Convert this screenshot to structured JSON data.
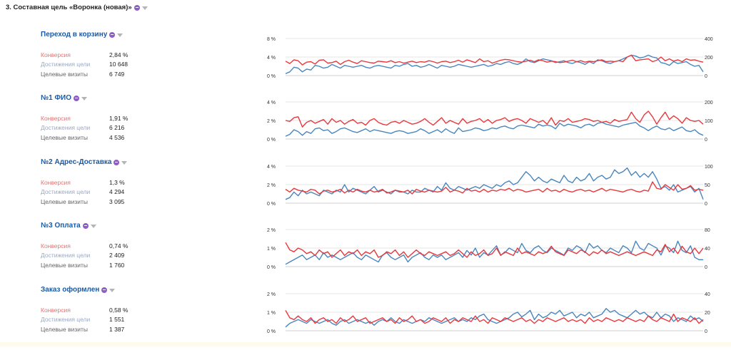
{
  "report_title": "3. Составная цель «Воронка (новая)»",
  "metric_labels": {
    "conversion": "Конверсия",
    "reaches": "Достижения цели",
    "visits": "Целевые визиты"
  },
  "colors": {
    "conversion_line": "#e8383d",
    "visits_line": "#4a86be",
    "goal_title": "#1a5aa5",
    "conversion_label": "#e17575",
    "reaches_label": "#9aa8c6",
    "gridline": "#e6e6e6"
  },
  "icons": {
    "segment": "segment-icon",
    "filter": "filter-icon"
  },
  "goals": [
    {
      "name": "Переход в корзину",
      "conversion": "2,84 %",
      "reaches": "10 648",
      "visits": "6 749",
      "left_ticks": [
        "8 %",
        "4 %",
        "0 %"
      ],
      "right_ticks": [
        "400",
        "200",
        "0"
      ],
      "left_max": 8,
      "right_max": 400,
      "conv_series": [
        3.1,
        2.6,
        3.4,
        3.2,
        2.3,
        2.9,
        3.0,
        2.5,
        3.3,
        3.4,
        2.7,
        2.8,
        3.1,
        2.4,
        3.0,
        3.3,
        2.9,
        2.6,
        3.2,
        3.0,
        2.8,
        2.7,
        3.1,
        3.0,
        2.9,
        3.2,
        2.8,
        3.0,
        2.7,
        2.9,
        3.1,
        2.8,
        3.0,
        2.9,
        3.2,
        3.0,
        2.7,
        3.0,
        3.1,
        2.8,
        3.0,
        3.3,
        2.9,
        3.4,
        3.1,
        2.8,
        3.6,
        3.0,
        3.2,
        2.7,
        3.0,
        3.3,
        3.5,
        3.4,
        3.2,
        3.0,
        2.9,
        3.1,
        3.3,
        3.0,
        3.4,
        3.2,
        2.9,
        3.1,
        3.0,
        2.8,
        2.9,
        3.1,
        3.3,
        3.0,
        3.2,
        2.9,
        3.1,
        3.0,
        3.2,
        3.4,
        3.0,
        3.1,
        3.0,
        3.2,
        3.0,
        4.0,
        4.4,
        3.2,
        3.4,
        3.5,
        3.6,
        3.0,
        3.3,
        4.0,
        3.2,
        3.6,
        3.1,
        3.4,
        3.0,
        3.6,
        3.3,
        3.4,
        3.1,
        2.9
      ],
      "visits_series": [
        20,
        40,
        90,
        80,
        40,
        70,
        60,
        110,
        100,
        80,
        90,
        120,
        100,
        80,
        110,
        100,
        90,
        100,
        110,
        90,
        80,
        100,
        110,
        100,
        90,
        80,
        110,
        100,
        120,
        130,
        100,
        110,
        90,
        100,
        120,
        100,
        80,
        110,
        100,
        90,
        100,
        120,
        110,
        100,
        90,
        100,
        110,
        120,
        100,
        110,
        130,
        120,
        140,
        150,
        130,
        120,
        140,
        180,
        150,
        140,
        160,
        180,
        170,
        160,
        140,
        150,
        160,
        140,
        130,
        150,
        140,
        120,
        150,
        130,
        170,
        160,
        140,
        130,
        150,
        160,
        180,
        200,
        220,
        210,
        190,
        200,
        220,
        200,
        190,
        140,
        130,
        110,
        150,
        130,
        140,
        150,
        120,
        100,
        110,
        40
      ]
    },
    {
      "name": "№1 ФИО",
      "conversion": "1,91 %",
      "reaches": "6 216",
      "visits": "4 536",
      "left_ticks": [
        "4 %",
        "2 %",
        "0 %"
      ],
      "right_ticks": [
        "200",
        "100",
        "0"
      ],
      "left_max": 4,
      "right_max": 200,
      "conv_series": [
        2.0,
        1.9,
        2.3,
        2.4,
        1.3,
        1.8,
        2.0,
        1.7,
        1.9,
        2.1,
        1.6,
        2.2,
        1.8,
        2.0,
        1.6,
        1.9,
        2.1,
        1.7,
        1.8,
        1.5,
        2.0,
        2.2,
        1.8,
        1.6,
        1.5,
        1.8,
        1.9,
        1.7,
        2.0,
        1.8,
        1.6,
        1.7,
        1.9,
        2.2,
        1.8,
        1.5,
        1.9,
        2.3,
        1.7,
        2.0,
        1.8,
        1.6,
        2.2,
        1.7,
        1.9,
        2.0,
        2.2,
        1.8,
        2.1,
        1.7,
        2.0,
        2.1,
        2.3,
        1.9,
        2.1,
        2.2,
        2.0,
        1.7,
        2.2,
        2.0,
        1.8,
        2.0,
        1.6,
        2.3,
        1.5,
        2.0,
        1.9,
        2.2,
        1.8,
        1.9,
        2.0,
        2.2,
        2.1,
        1.9,
        2.0,
        1.8,
        1.9,
        1.7,
        2.1,
        1.9,
        2.0,
        2.1,
        2.9,
        2.2,
        1.8,
        2.6,
        3.0,
        2.4,
        1.6,
        2.3,
        2.9,
        2.1,
        2.5,
        2.2,
        1.7,
        2.3,
        2.0,
        1.9,
        2.0,
        1.6
      ],
      "visits_series": [
        15,
        25,
        50,
        40,
        20,
        40,
        30,
        55,
        60,
        45,
        50,
        30,
        40,
        55,
        60,
        50,
        40,
        35,
        45,
        55,
        40,
        50,
        45,
        40,
        35,
        30,
        40,
        45,
        40,
        30,
        35,
        40,
        55,
        45,
        30,
        40,
        50,
        35,
        55,
        40,
        30,
        60,
        40,
        45,
        50,
        60,
        55,
        45,
        50,
        60,
        55,
        65,
        70,
        60,
        55,
        70,
        75,
        70,
        65,
        60,
        80,
        70,
        75,
        70,
        55,
        85,
        70,
        80,
        75,
        70,
        60,
        75,
        80,
        70,
        85,
        90,
        80,
        75,
        70,
        65,
        75,
        80,
        85,
        90,
        70,
        60,
        45,
        60,
        70,
        55,
        50,
        60,
        45,
        55,
        65,
        45,
        40,
        50,
        30,
        20
      ]
    },
    {
      "name": "№2 Адрес-Доставка",
      "conversion": "1,3 %",
      "reaches": "4 294",
      "visits": "3 095",
      "left_ticks": [
        "4 %",
        "2 %",
        "0 %"
      ],
      "right_ticks": [
        "100",
        "50",
        "0"
      ],
      "left_max": 4,
      "right_max": 100,
      "conv_series": [
        1.5,
        1.2,
        1.6,
        1.4,
        1.3,
        1.2,
        1.5,
        1.4,
        1.0,
        1.3,
        1.4,
        1.2,
        1.3,
        1.5,
        1.1,
        1.4,
        1.2,
        1.5,
        1.3,
        1.2,
        1.4,
        1.2,
        1.3,
        1.5,
        1.1,
        1.2,
        1.4,
        1.3,
        1.2,
        1.4,
        1.0,
        1.5,
        1.3,
        1.2,
        1.4,
        1.3,
        1.2,
        1.3,
        1.7,
        1.2,
        1.4,
        1.3,
        1.1,
        1.6,
        1.3,
        1.4,
        1.2,
        1.5,
        1.2,
        1.4,
        1.3,
        1.5,
        1.4,
        1.6,
        1.3,
        1.5,
        1.4,
        1.2,
        1.3,
        1.4,
        1.5,
        1.2,
        1.6,
        1.3,
        1.4,
        1.2,
        1.5,
        1.3,
        1.2,
        1.4,
        1.5,
        1.3,
        1.4,
        1.2,
        1.4,
        1.6,
        1.3,
        1.5,
        1.4,
        1.3,
        1.2,
        1.4,
        1.5,
        1.3,
        1.2,
        1.4,
        1.3,
        2.3,
        1.6,
        1.5,
        2.0,
        1.7,
        1.4,
        2.0,
        1.5,
        1.6,
        1.9,
        1.4,
        1.5,
        1.4
      ],
      "visits_series": [
        10,
        15,
        30,
        20,
        35,
        25,
        30,
        25,
        20,
        35,
        30,
        25,
        35,
        30,
        50,
        30,
        40,
        35,
        30,
        25,
        35,
        45,
        30,
        35,
        30,
        25,
        35,
        30,
        30,
        25,
        35,
        30,
        30,
        40,
        35,
        30,
        45,
        35,
        55,
        40,
        35,
        45,
        40,
        35,
        40,
        45,
        40,
        50,
        45,
        40,
        50,
        45,
        55,
        60,
        50,
        55,
        70,
        85,
        75,
        60,
        70,
        60,
        55,
        65,
        60,
        55,
        75,
        60,
        55,
        70,
        60,
        65,
        80,
        60,
        70,
        75,
        65,
        70,
        90,
        80,
        85,
        95,
        75,
        85,
        70,
        80,
        70,
        85,
        65,
        40,
        45,
        35,
        50,
        30,
        35,
        40,
        45,
        30,
        40,
        10
      ]
    },
    {
      "name": "№3 Оплата",
      "conversion": "0,74 %",
      "reaches": "2 409",
      "visits": "1 760",
      "left_ticks": [
        "2 %",
        "1 %",
        "0 %"
      ],
      "right_ticks": [
        "80",
        "40",
        "0"
      ],
      "left_max": 2,
      "right_max": 80,
      "conv_series": [
        1.3,
        0.9,
        0.8,
        1.0,
        0.9,
        0.7,
        0.8,
        0.6,
        0.9,
        0.7,
        0.8,
        0.5,
        0.7,
        0.9,
        0.6,
        0.8,
        0.7,
        0.9,
        0.6,
        0.8,
        0.7,
        0.9,
        0.5,
        0.6,
        0.8,
        0.7,
        0.9,
        0.6,
        0.8,
        0.5,
        0.7,
        0.9,
        0.7,
        0.6,
        0.8,
        0.7,
        0.6,
        0.7,
        0.8,
        0.6,
        0.7,
        0.9,
        0.7,
        0.5,
        0.8,
        0.6,
        0.7,
        0.9,
        0.6,
        0.7,
        1.0,
        0.6,
        0.8,
        0.7,
        0.6,
        1.0,
        0.7,
        0.8,
        0.7,
        0.6,
        0.8,
        0.7,
        0.8,
        1.1,
        0.8,
        0.7,
        0.6,
        0.9,
        0.8,
        0.7,
        0.9,
        0.8,
        0.6,
        0.8,
        0.7,
        0.9,
        0.7,
        0.8,
        0.7,
        0.6,
        0.7,
        0.8,
        0.7,
        0.6,
        0.7,
        0.8,
        0.7,
        0.6,
        0.9,
        0.8,
        1.2,
        0.8,
        1.0,
        0.7,
        1.1,
        0.8,
        0.7,
        1.0,
        0.7,
        1.0
      ],
      "visits_series": [
        5,
        10,
        15,
        20,
        25,
        15,
        20,
        25,
        15,
        30,
        20,
        25,
        20,
        15,
        20,
        25,
        30,
        20,
        15,
        25,
        20,
        15,
        10,
        25,
        30,
        20,
        15,
        20,
        25,
        10,
        20,
        25,
        30,
        20,
        15,
        25,
        20,
        25,
        15,
        20,
        25,
        30,
        20,
        35,
        25,
        40,
        20,
        30,
        25,
        35,
        45,
        25,
        30,
        40,
        35,
        30,
        50,
        35,
        30,
        40,
        45,
        35,
        30,
        40,
        35,
        30,
        25,
        40,
        35,
        45,
        40,
        30,
        50,
        40,
        45,
        35,
        30,
        40,
        35,
        30,
        45,
        40,
        30,
        55,
        40,
        35,
        50,
        45,
        40,
        25,
        45,
        40,
        30,
        55,
        35,
        30,
        45,
        20,
        15,
        15
      ]
    },
    {
      "name": "Заказ оформлен",
      "conversion": "0,58 %",
      "reaches": "1 551",
      "visits": "1 387",
      "left_ticks": [
        "2 %",
        "1 %",
        "0 %"
      ],
      "right_ticks": [
        "40",
        "20",
        "0"
      ],
      "left_max": 2,
      "right_max": 40,
      "conv_series": [
        1.1,
        0.7,
        0.6,
        0.8,
        0.6,
        0.5,
        0.7,
        0.4,
        0.6,
        0.7,
        0.5,
        0.6,
        0.4,
        0.7,
        0.5,
        0.6,
        0.8,
        0.5,
        0.6,
        0.7,
        0.4,
        0.5,
        0.6,
        0.7,
        0.5,
        0.6,
        0.4,
        0.7,
        0.5,
        0.6,
        0.8,
        0.5,
        0.6,
        0.4,
        0.5,
        0.7,
        0.6,
        0.5,
        0.7,
        0.4,
        0.6,
        0.5,
        0.7,
        0.6,
        0.5,
        0.8,
        0.5,
        0.6,
        0.4,
        0.7,
        0.6,
        0.5,
        0.7,
        0.6,
        0.5,
        0.6,
        0.7,
        0.5,
        0.6,
        0.4,
        0.6,
        0.5,
        0.7,
        0.6,
        0.5,
        0.6,
        0.7,
        0.5,
        0.6,
        0.5,
        0.6,
        0.4,
        0.7,
        0.5,
        0.6,
        0.5,
        0.7,
        0.6,
        0.5,
        0.6,
        0.5,
        0.7,
        0.6,
        0.5,
        0.6,
        0.5,
        0.8,
        0.6,
        0.5,
        0.7,
        0.6,
        0.5,
        0.9,
        0.5,
        0.7,
        0.6,
        0.5,
        0.7,
        0.4,
        0.6
      ],
      "visits_series": [
        4,
        8,
        10,
        12,
        10,
        8,
        12,
        10,
        8,
        10,
        12,
        8,
        6,
        10,
        12,
        8,
        10,
        12,
        10,
        8,
        10,
        6,
        10,
        12,
        10,
        14,
        10,
        8,
        12,
        10,
        8,
        10,
        12,
        10,
        14,
        12,
        10,
        8,
        10,
        12,
        14,
        10,
        12,
        10,
        14,
        12,
        16,
        18,
        12,
        10,
        8,
        10,
        12,
        14,
        18,
        20,
        15,
        18,
        22,
        12,
        18,
        14,
        16,
        20,
        18,
        22,
        16,
        18,
        20,
        14,
        18,
        16,
        20,
        14,
        16,
        18,
        24,
        20,
        22,
        18,
        16,
        14,
        18,
        22,
        18,
        20,
        16,
        14,
        20,
        14,
        18,
        16,
        10,
        14,
        12,
        10,
        16,
        12,
        14,
        10
      ]
    }
  ]
}
